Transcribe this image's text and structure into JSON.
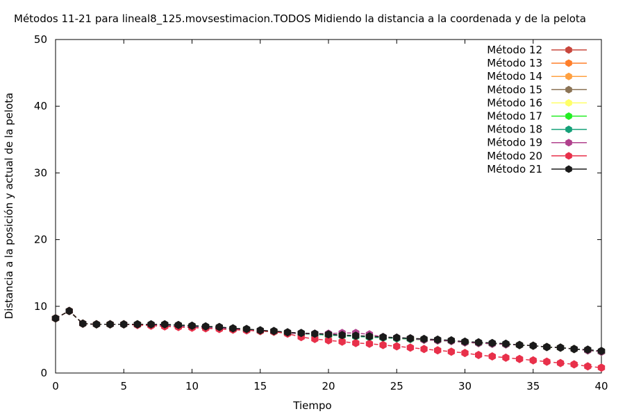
{
  "chart_data": {
    "type": "line",
    "title": "Métodos 11-21 para lineal8_125.movsestimacion.TODOS Midiendo la distancia a la coordenada y de la pelota",
    "xlabel": "Tiempo",
    "ylabel": "Distancia a la posición y actual de la pelota",
    "xlim": [
      0,
      40
    ],
    "ylim": [
      0,
      50
    ],
    "xticks": [
      "0",
      "5",
      "10",
      "15",
      "20",
      "25",
      "30",
      "35",
      "40"
    ],
    "yticks": [
      "0",
      "10",
      "20",
      "30",
      "40",
      "50"
    ],
    "grid": false,
    "legend_position": "top-right",
    "x": [
      0,
      1,
      2,
      3,
      4,
      5,
      6,
      7,
      8,
      9,
      10,
      11,
      12,
      13,
      14,
      15,
      16,
      17,
      18,
      19,
      20,
      21,
      22,
      23,
      24,
      25,
      26,
      27,
      28,
      29,
      30,
      31,
      32,
      33,
      34,
      35,
      36,
      37,
      38,
      39,
      40
    ],
    "series": [
      {
        "name": "Método 12",
        "color": "#c8463c",
        "values": [
          8.2,
          9.3,
          7.4,
          7.3,
          7.3,
          7.3,
          7.3,
          7.2,
          7.2,
          7.1,
          7.0,
          6.9,
          6.8,
          6.6,
          6.5,
          6.3,
          6.2,
          6.0,
          5.9,
          5.8,
          5.7,
          5.6,
          5.5,
          5.4,
          5.3,
          5.2,
          5.1,
          5.0,
          4.9,
          4.8,
          4.6,
          4.5,
          4.4,
          4.3,
          4.2,
          4.1,
          3.9,
          3.8,
          3.6,
          3.4,
          3.2
        ]
      },
      {
        "name": "Método 13",
        "color": "#ff7f2a",
        "values": [
          8.2,
          9.3,
          7.4,
          7.3,
          7.3,
          7.3,
          7.3,
          7.2,
          7.2,
          7.1,
          7.0,
          6.9,
          6.8,
          6.6,
          6.5,
          6.3,
          6.2,
          6.0,
          5.9,
          5.8,
          5.7,
          5.6,
          5.5,
          5.4,
          5.3,
          5.2,
          5.1,
          5.0,
          4.9,
          4.8,
          4.6,
          4.5,
          4.4,
          4.3,
          4.2,
          4.1,
          3.9,
          3.8,
          3.6,
          3.4,
          3.2
        ]
      },
      {
        "name": "Método 14",
        "color": "#ffa040",
        "values": [
          8.2,
          9.3,
          7.4,
          7.3,
          7.3,
          7.3,
          7.3,
          7.2,
          7.2,
          7.1,
          7.0,
          6.9,
          6.8,
          6.6,
          6.5,
          6.3,
          6.2,
          6.0,
          5.9,
          5.8,
          5.7,
          5.6,
          5.5,
          5.4,
          5.3,
          5.2,
          5.1,
          5.0,
          4.9,
          4.8,
          4.6,
          4.5,
          4.4,
          4.3,
          4.2,
          4.1,
          3.9,
          3.8,
          3.6,
          3.4,
          3.2
        ]
      },
      {
        "name": "Método 15",
        "color": "#8b7355",
        "values": [
          8.2,
          9.3,
          7.4,
          7.3,
          7.3,
          7.3,
          7.3,
          7.2,
          7.2,
          7.1,
          7.0,
          6.9,
          6.8,
          6.6,
          6.5,
          6.3,
          6.2,
          6.0,
          5.9,
          5.8,
          5.7,
          5.6,
          5.5,
          5.4,
          5.3,
          5.2,
          5.1,
          5.0,
          4.9,
          4.8,
          4.6,
          4.5,
          4.4,
          4.3,
          4.2,
          4.1,
          3.9,
          3.8,
          3.6,
          3.4,
          3.2
        ]
      },
      {
        "name": "Método 16",
        "color": "#ffff66",
        "values": [
          8.2,
          9.3,
          7.4,
          7.3,
          7.3,
          7.3,
          7.3,
          7.2,
          7.2,
          7.1,
          7.0,
          6.9,
          6.8,
          6.6,
          6.5,
          6.3,
          6.2,
          6.0,
          5.9,
          5.8,
          5.7,
          5.6,
          5.5,
          5.4,
          5.3,
          5.2,
          5.1,
          5.0,
          4.9,
          4.8,
          4.6,
          4.5,
          4.4,
          4.3,
          4.2,
          4.1,
          3.9,
          3.8,
          3.6,
          3.4,
          3.2
        ]
      },
      {
        "name": "Método 17",
        "color": "#22ee22",
        "values": [
          8.2,
          9.3,
          7.4,
          7.3,
          7.3,
          7.3,
          7.3,
          7.2,
          7.2,
          7.1,
          7.0,
          6.9,
          6.8,
          6.6,
          6.5,
          6.3,
          6.2,
          6.0,
          5.9,
          5.8,
          5.7,
          5.6,
          5.5,
          5.4,
          5.3,
          5.2,
          5.1,
          5.0,
          4.9,
          4.8,
          4.6,
          4.5,
          4.4,
          4.3,
          4.2,
          4.1,
          3.9,
          3.8,
          3.6,
          3.4,
          3.2
        ]
      },
      {
        "name": "Método 18",
        "color": "#14a078",
        "values": [
          8.2,
          9.3,
          7.4,
          7.3,
          7.3,
          7.3,
          7.3,
          7.2,
          7.2,
          7.1,
          7.0,
          6.9,
          6.8,
          6.6,
          6.5,
          6.3,
          6.2,
          6.0,
          5.9,
          5.8,
          5.7,
          5.6,
          5.5,
          5.4,
          5.3,
          5.2,
          5.1,
          5.0,
          4.9,
          4.8,
          4.6,
          4.5,
          4.4,
          4.3,
          4.2,
          4.1,
          3.9,
          3.8,
          3.6,
          3.4,
          3.2
        ]
      },
      {
        "name": "Método 19",
        "color": "#b0408c",
        "values": [
          8.2,
          9.3,
          7.4,
          7.3,
          7.3,
          7.3,
          7.3,
          7.2,
          7.1,
          7.0,
          6.9,
          6.8,
          6.7,
          6.6,
          6.4,
          6.3,
          6.2,
          6.0,
          5.9,
          5.9,
          5.9,
          6.0,
          6.0,
          5.8,
          5.4,
          5.3,
          5.2,
          5.0,
          4.9,
          4.8,
          4.6,
          4.5,
          4.4,
          4.3,
          4.2,
          4.1,
          3.9,
          3.8,
          3.6,
          3.4,
          3.2
        ]
      },
      {
        "name": "Método 20",
        "color": "#e8304a",
        "values": [
          8.2,
          9.3,
          7.4,
          7.3,
          7.3,
          7.3,
          7.2,
          7.1,
          7.0,
          6.9,
          6.8,
          6.7,
          6.6,
          6.5,
          6.4,
          6.3,
          6.2,
          5.9,
          5.4,
          5.1,
          4.9,
          4.7,
          4.5,
          4.4,
          4.2,
          4.0,
          3.8,
          3.6,
          3.4,
          3.2,
          3.0,
          2.7,
          2.5,
          2.3,
          2.1,
          1.9,
          1.7,
          1.5,
          1.3,
          1.0,
          0.8
        ]
      },
      {
        "name": "Método 21",
        "color": "#1a1a1a",
        "values": [
          8.2,
          9.3,
          7.4,
          7.3,
          7.3,
          7.3,
          7.3,
          7.3,
          7.3,
          7.2,
          7.1,
          7.0,
          6.9,
          6.7,
          6.6,
          6.4,
          6.3,
          6.1,
          6.0,
          5.9,
          5.8,
          5.7,
          5.6,
          5.5,
          5.4,
          5.3,
          5.2,
          5.1,
          5.0,
          4.9,
          4.7,
          4.6,
          4.5,
          4.4,
          4.2,
          4.1,
          3.9,
          3.8,
          3.6,
          3.5,
          3.3
        ]
      }
    ]
  }
}
